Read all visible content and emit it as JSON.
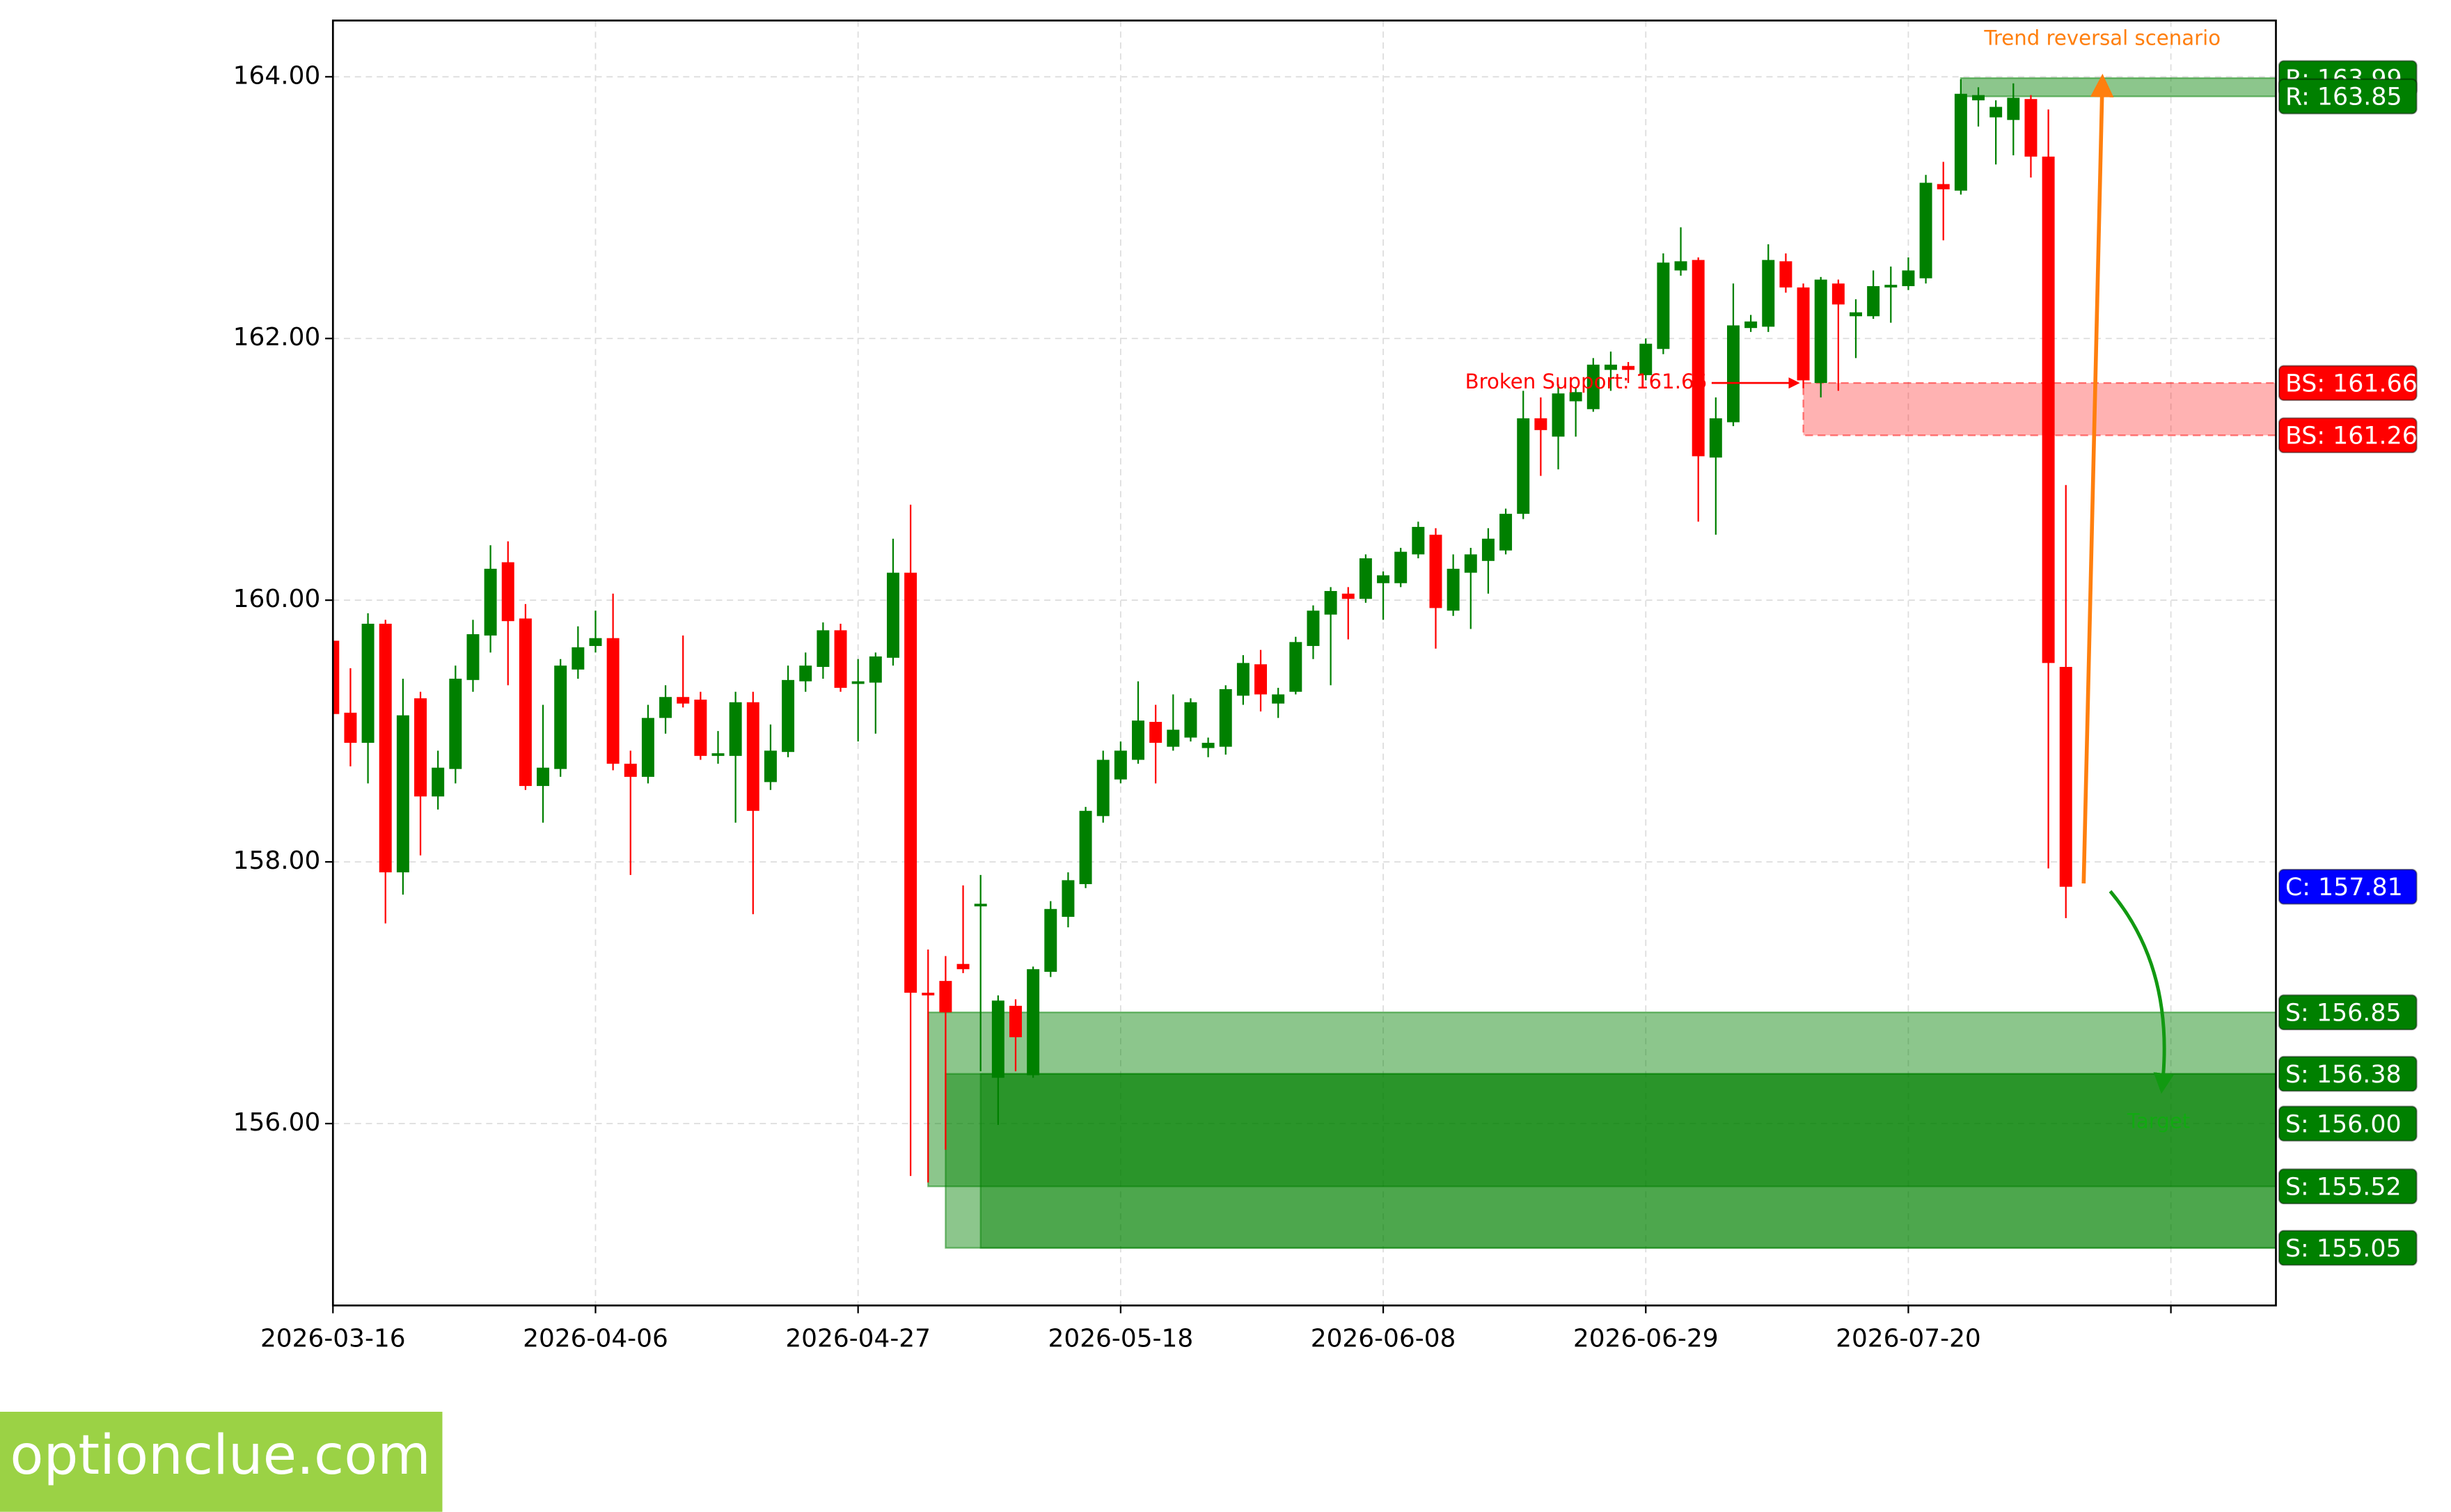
{
  "chart_data": {
    "type": "candlestick",
    "up_color": "#008000",
    "down_color": "#ff0000",
    "grid": true,
    "xlim": [
      0,
      111
    ],
    "xticks": [
      {
        "value": 0,
        "label": "2026-03-16"
      },
      {
        "value": 15,
        "label": "2026-04-06"
      },
      {
        "value": 30,
        "label": "2026-04-27"
      },
      {
        "value": 45,
        "label": "2026-05-18"
      },
      {
        "value": 60,
        "label": "2026-06-08"
      },
      {
        "value": 75,
        "label": "2026-06-29"
      },
      {
        "value": 90,
        "label": "2026-07-20"
      },
      105
    ],
    "ylim": [
      154.61,
      164.43
    ],
    "yticks": [
      {
        "value": 156,
        "label": "156.00"
      },
      {
        "value": 158,
        "label": "158.00"
      },
      {
        "value": 160,
        "label": "160.00"
      },
      {
        "value": 162,
        "label": "162.00"
      },
      {
        "value": 164,
        "label": "164.00"
      }
    ],
    "open": [
      159.69,
      159.14,
      158.91,
      159.82,
      157.92,
      159.25,
      158.5,
      158.71,
      159.39,
      159.73,
      160.29,
      159.86,
      158.58,
      158.71,
      159.47,
      159.65,
      159.71,
      158.75,
      158.65,
      159.1,
      159.26,
      159.24,
      158.81,
      158.81,
      159.22,
      158.61,
      158.84,
      159.38,
      159.49,
      159.77,
      159.36,
      159.37,
      159.56,
      160.21,
      157.0,
      157.09,
      157.22,
      157.66,
      156.35,
      156.9,
      156.37,
      157.16,
      157.58,
      157.83,
      158.35,
      158.63,
      158.78,
      159.07,
      158.88,
      158.95,
      158.87,
      158.88,
      159.27,
      159.51,
      159.21,
      159.3,
      159.65,
      159.89,
      160.05,
      160.01,
      160.13,
      160.13,
      160.35,
      160.5,
      159.92,
      160.21,
      160.3,
      160.38,
      160.66,
      161.39,
      161.25,
      161.52,
      161.46,
      161.76,
      161.79,
      161.72,
      161.92,
      162.52,
      162.6,
      161.09,
      161.36,
      162.08,
      162.09,
      162.59,
      162.39,
      161.66,
      162.42,
      162.17,
      162.17,
      162.39,
      162.4,
      162.46,
      163.18,
      163.13,
      163.82,
      163.69,
      163.67,
      163.83,
      163.39,
      159.49
    ],
    "high": [
      159.75,
      159.48,
      159.9,
      159.85,
      159.4,
      159.3,
      158.85,
      159.5,
      159.85,
      160.42,
      160.45,
      159.97,
      159.2,
      159.55,
      159.8,
      159.92,
      160.05,
      158.85,
      159.2,
      159.35,
      159.73,
      159.3,
      159.0,
      159.3,
      159.3,
      159.05,
      159.5,
      159.6,
      159.83,
      159.82,
      159.55,
      159.6,
      160.47,
      160.73,
      157.33,
      157.28,
      157.82,
      157.9,
      156.98,
      156.95,
      157.2,
      157.7,
      157.92,
      158.42,
      158.85,
      158.92,
      159.38,
      159.2,
      159.28,
      159.25,
      158.95,
      159.35,
      159.58,
      159.62,
      159.33,
      159.72,
      159.96,
      160.1,
      160.1,
      160.35,
      160.22,
      160.4,
      160.6,
      160.55,
      160.35,
      160.4,
      160.55,
      160.7,
      161.6,
      161.55,
      161.65,
      161.62,
      161.85,
      161.9,
      161.82,
      162.0,
      162.65,
      162.85,
      162.62,
      161.55,
      162.42,
      162.18,
      162.72,
      162.65,
      162.42,
      162.47,
      162.45,
      162.3,
      162.52,
      162.55,
      162.62,
      163.25,
      163.35,
      163.98,
      163.92,
      163.82,
      163.95,
      163.86,
      163.75,
      160.88
    ],
    "low": [
      159.05,
      158.73,
      158.6,
      157.53,
      157.75,
      158.05,
      158.4,
      158.6,
      159.3,
      159.6,
      159.35,
      158.55,
      158.3,
      158.65,
      159.4,
      159.6,
      158.7,
      157.9,
      158.6,
      158.98,
      159.18,
      158.78,
      158.75,
      158.3,
      157.6,
      158.55,
      158.8,
      159.3,
      159.4,
      159.3,
      158.92,
      158.98,
      159.5,
      155.6,
      155.55,
      155.8,
      157.15,
      156.4,
      155.99,
      156.4,
      156.35,
      157.12,
      157.5,
      157.8,
      158.3,
      158.6,
      158.75,
      158.6,
      158.85,
      158.92,
      158.8,
      158.82,
      159.2,
      159.15,
      159.1,
      159.28,
      159.55,
      159.35,
      159.7,
      159.98,
      159.85,
      160.1,
      160.32,
      159.63,
      159.88,
      159.78,
      160.05,
      160.35,
      160.62,
      160.95,
      161.0,
      161.25,
      161.44,
      161.6,
      161.66,
      161.68,
      161.88,
      162.48,
      160.6,
      160.5,
      161.33,
      162.05,
      162.05,
      162.35,
      161.62,
      161.55,
      161.6,
      161.85,
      162.15,
      162.12,
      162.37,
      162.42,
      162.75,
      163.1,
      163.62,
      163.33,
      163.4,
      163.23,
      157.95,
      157.57
    ],
    "close": [
      159.13,
      158.91,
      159.82,
      157.92,
      159.12,
      158.5,
      158.72,
      159.4,
      159.74,
      160.24,
      159.84,
      158.58,
      158.72,
      159.5,
      159.64,
      159.71,
      158.75,
      158.65,
      159.1,
      159.26,
      159.21,
      158.81,
      158.83,
      159.22,
      158.39,
      158.85,
      159.39,
      159.5,
      159.77,
      159.33,
      159.38,
      159.57,
      160.21,
      157.0,
      156.98,
      156.85,
      157.18,
      157.68,
      156.94,
      156.66,
      157.18,
      157.64,
      157.86,
      158.39,
      158.78,
      158.85,
      159.08,
      158.91,
      159.01,
      159.22,
      158.91,
      159.32,
      159.52,
      159.28,
      159.28,
      159.68,
      159.92,
      160.07,
      160.01,
      160.32,
      160.19,
      160.37,
      160.56,
      159.94,
      160.24,
      160.35,
      160.47,
      160.66,
      161.39,
      161.3,
      161.58,
      161.59,
      161.8,
      161.8,
      161.76,
      161.96,
      162.58,
      162.59,
      161.1,
      161.39,
      162.1,
      162.13,
      162.6,
      162.39,
      161.68,
      162.45,
      162.26,
      162.2,
      162.4,
      162.41,
      162.52,
      163.19,
      163.14,
      163.87,
      163.86,
      163.77,
      163.84,
      163.39,
      159.52,
      157.81
    ],
    "zones": [
      {
        "low": 155.52,
        "high": 156.85,
        "start": 34,
        "color": "#008000"
      },
      {
        "low": 155.05,
        "high": 156.38,
        "start": 35,
        "color": "#008000"
      },
      {
        "low": 155.05,
        "high": 156.38,
        "start": 37,
        "color": "#008000"
      },
      {
        "low": 161.26,
        "high": 161.66,
        "start": 84,
        "color": "#ff0000"
      },
      {
        "low": 163.85,
        "high": 163.99,
        "start": 93,
        "color": "#008000"
      }
    ],
    "levels": [
      {
        "label": "R: 163.99",
        "value": 163.99,
        "color": "#008000"
      },
      {
        "label": "R: 163.85",
        "value": 163.85,
        "color": "#008000"
      },
      {
        "label": "BS: 161.66",
        "value": 161.66,
        "color": "#ff0000"
      },
      {
        "label": "BS: 161.26",
        "value": 161.26,
        "color": "#ff0000"
      },
      {
        "label": "C: 157.81",
        "value": 157.81,
        "color": "#0000ff"
      },
      {
        "label": "S: 156.85",
        "value": 156.85,
        "color": "#008000"
      },
      {
        "label": "S: 156.38",
        "value": 156.38,
        "color": "#008000"
      },
      {
        "label": "S: 156.00",
        "value": 156.0,
        "color": "#008000"
      },
      {
        "label": "S: 155.52",
        "value": 155.52,
        "color": "#008000"
      },
      {
        "label": "S: 155.05",
        "value": 155.05,
        "color": "#008000"
      }
    ],
    "annotations": {
      "broken_support": "Broken Support: 161.66",
      "trend": "Trend reversal scenario",
      "target": "Target"
    }
  },
  "watermark": "optionclue.com"
}
